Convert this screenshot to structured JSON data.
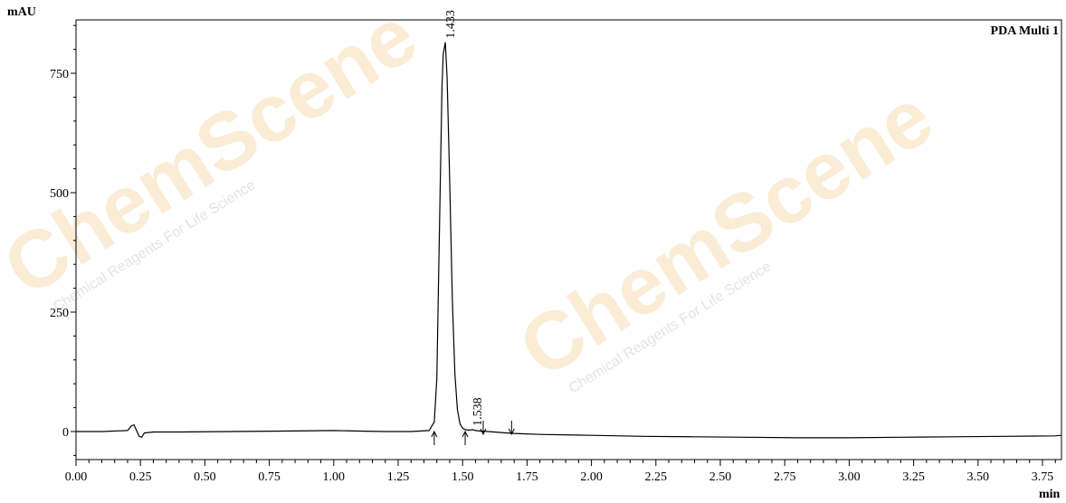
{
  "chart_data": {
    "type": "line",
    "ylabel": "mAU",
    "xlabel": "min",
    "channel": "PDA Multi 1",
    "xlim": [
      0.0,
      4.0
    ],
    "ylim": [
      -55,
      860
    ],
    "x_ticks": [
      "0.00",
      "0.25",
      "0.50",
      "0.75",
      "1.00",
      "1.25",
      "1.50",
      "1.75",
      "2.00",
      "2.25",
      "2.50",
      "2.75",
      "3.00",
      "3.25",
      "3.50",
      "3.75"
    ],
    "x_tick_values": [
      0.0,
      0.25,
      0.5,
      0.75,
      1.0,
      1.25,
      1.5,
      1.75,
      2.0,
      2.25,
      2.5,
      2.75,
      3.0,
      3.25,
      3.5,
      3.75
    ],
    "y_ticks": [
      "0",
      "250",
      "500",
      "750"
    ],
    "y_tick_values": [
      0,
      250,
      500,
      750
    ],
    "series": [
      {
        "x": [
          0.0,
          0.1,
          0.2,
          0.215,
          0.225,
          0.235,
          0.245,
          0.255,
          0.265,
          0.28,
          0.3,
          0.4,
          0.6,
          0.8,
          1.0,
          1.1,
          1.2,
          1.3,
          1.37,
          1.39,
          1.4,
          1.41,
          1.42,
          1.425,
          1.433,
          1.44,
          1.45,
          1.46,
          1.47,
          1.48,
          1.49,
          1.5,
          1.51,
          1.52,
          1.53,
          1.538,
          1.55,
          1.57,
          1.6,
          1.65,
          1.7,
          1.8,
          2.0,
          2.2,
          2.4,
          2.6,
          2.8,
          3.0,
          3.2,
          3.4,
          3.6,
          3.8,
          4.0
        ],
        "y": [
          0,
          0,
          2,
          12,
          14,
          2,
          -10,
          -12,
          -3,
          -2,
          -1,
          -1,
          0,
          1,
          2,
          1,
          0,
          0,
          2,
          20,
          110,
          420,
          720,
          790,
          815,
          740,
          520,
          280,
          120,
          45,
          16,
          7,
          4,
          3,
          3,
          4,
          2,
          1,
          0,
          -2,
          -4,
          -6,
          -8,
          -10,
          -11,
          -12,
          -13,
          -13,
          -12,
          -11,
          -10,
          -9,
          -8
        ]
      }
    ],
    "peak_labels": [
      {
        "x": 1.433,
        "y": 815,
        "text": "1.433"
      },
      {
        "x": 1.538,
        "y": 4,
        "text": "1.538"
      }
    ],
    "integration_marks": [
      {
        "x": 1.39,
        "type": "up"
      },
      {
        "x": 1.51,
        "type": "up"
      },
      {
        "x": 1.58,
        "type": "down"
      },
      {
        "x": 1.69,
        "type": "down"
      }
    ],
    "grid": false
  },
  "watermark": {
    "texts": [
      "ChemScene",
      "Chemical Reagents For Life Science"
    ]
  }
}
